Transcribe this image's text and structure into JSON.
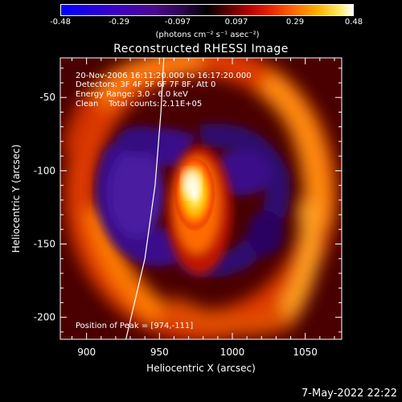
{
  "title": "Reconstructed RHESSI Image",
  "colorbar": {
    "ticks": [
      "-0.48",
      "-0.29",
      "-0.097",
      "0.097",
      "0.29",
      "0.48"
    ],
    "units_label": "(photons cm⁻² s⁻¹ asec⁻²)"
  },
  "info": {
    "time": "20-Nov-2006 16:11:20.000 to 16:17:20.000",
    "detectors": "Detectors: 3F 4F 5F 6F 7F 8F, Att 0",
    "energy": "Energy Range: 3.0 - 6.0 keV",
    "clean": "Clean    Total counts: 2.11E+05"
  },
  "peak_label": "Position of Peak = [974,-111]",
  "footer_date": "7-May-2022 22:22",
  "chart_data": {
    "type": "heatmap",
    "title": "Reconstructed RHESSI Image",
    "xlabel": "Heliocentric X (arcsec)",
    "ylabel": "Heliocentric Y (arcsec)",
    "xlim": [
      882,
      1075
    ],
    "ylim": [
      -215,
      -23
    ],
    "xticks": [
      "900",
      "950",
      "1000",
      "1050"
    ],
    "yticks": [
      "-50",
      "-100",
      "-150",
      "-200"
    ],
    "xtick_values": [
      900,
      950,
      1000,
      1050
    ],
    "ytick_values": [
      -50,
      -100,
      -150,
      -200
    ],
    "color_range": [
      -0.48,
      0.48
    ],
    "peak": [
      974,
      -111
    ],
    "limb_curve": [
      [
        953,
        -23
      ],
      [
        951,
        -60
      ],
      [
        947,
        -110
      ],
      [
        940,
        -160
      ],
      [
        927,
        -215
      ]
    ]
  }
}
